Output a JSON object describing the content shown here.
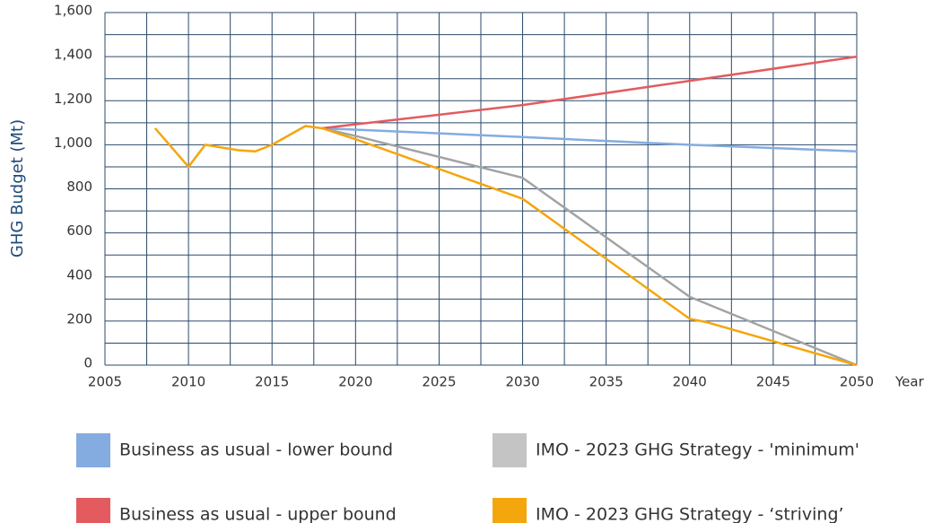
{
  "chart_data": {
    "type": "line",
    "x_label": "Year",
    "y_label": "GHG Budget (Mt)",
    "xlim": [
      2005,
      2050
    ],
    "xticks": [
      2005,
      2010,
      2015,
      2020,
      2025,
      2030,
      2035,
      2040,
      2045,
      2050
    ],
    "x_minor_grid": [
      2007.5,
      2012.5,
      2017.5,
      2022.5,
      2027.5,
      2032.5,
      2037.5,
      2042.5,
      2047.5
    ],
    "ylim": [
      0,
      1600
    ],
    "yticks": [
      0,
      200,
      400,
      600,
      800,
      {
        "value": 1000,
        "label": "1,000"
      },
      {
        "value": 1200,
        "label": "1,200"
      },
      {
        "value": 1400,
        "label": "1,400"
      },
      {
        "value": 1600,
        "label": "1,600"
      }
    ],
    "y_minor_grid": [
      100,
      300,
      500,
      700,
      900,
      1100,
      1300,
      1500
    ],
    "grid": true,
    "grid_color": "#2b4a6a",
    "legend": "bottom",
    "series": [
      {
        "name": "Business as usual - lower bound",
        "color": "#84ace0",
        "x": [
          2018,
          2030,
          2040,
          2050
        ],
        "values": [
          1075,
          1035,
          1000,
          970
        ]
      },
      {
        "name": "IMO - 2023 GHG Strategy - 'minimum'",
        "color": "#a3a3a3",
        "legend_color": "#c4c4c4",
        "x": [
          2018,
          2020,
          2030,
          2040,
          2050
        ],
        "values": [
          1075,
          1040,
          850,
          310,
          0
        ]
      },
      {
        "name": "Business as usual - upper bound",
        "color": "#e35b5e",
        "x": [
          2018,
          2030,
          2040,
          2050
        ],
        "values": [
          1075,
          1180,
          1290,
          1400
        ]
      },
      {
        "name": "IMO - 2023 GHG Strategy - ‘striving’",
        "color": "#f4a60d",
        "x": [
          2008,
          2010,
          2011,
          2013,
          2014,
          2015,
          2017,
          2018,
          2020,
          2030,
          2040,
          2041,
          2050
        ],
        "values": [
          1075,
          900,
          1000,
          975,
          970,
          1000,
          1085,
          1075,
          1025,
          755,
          210,
          195,
          0
        ]
      }
    ]
  }
}
